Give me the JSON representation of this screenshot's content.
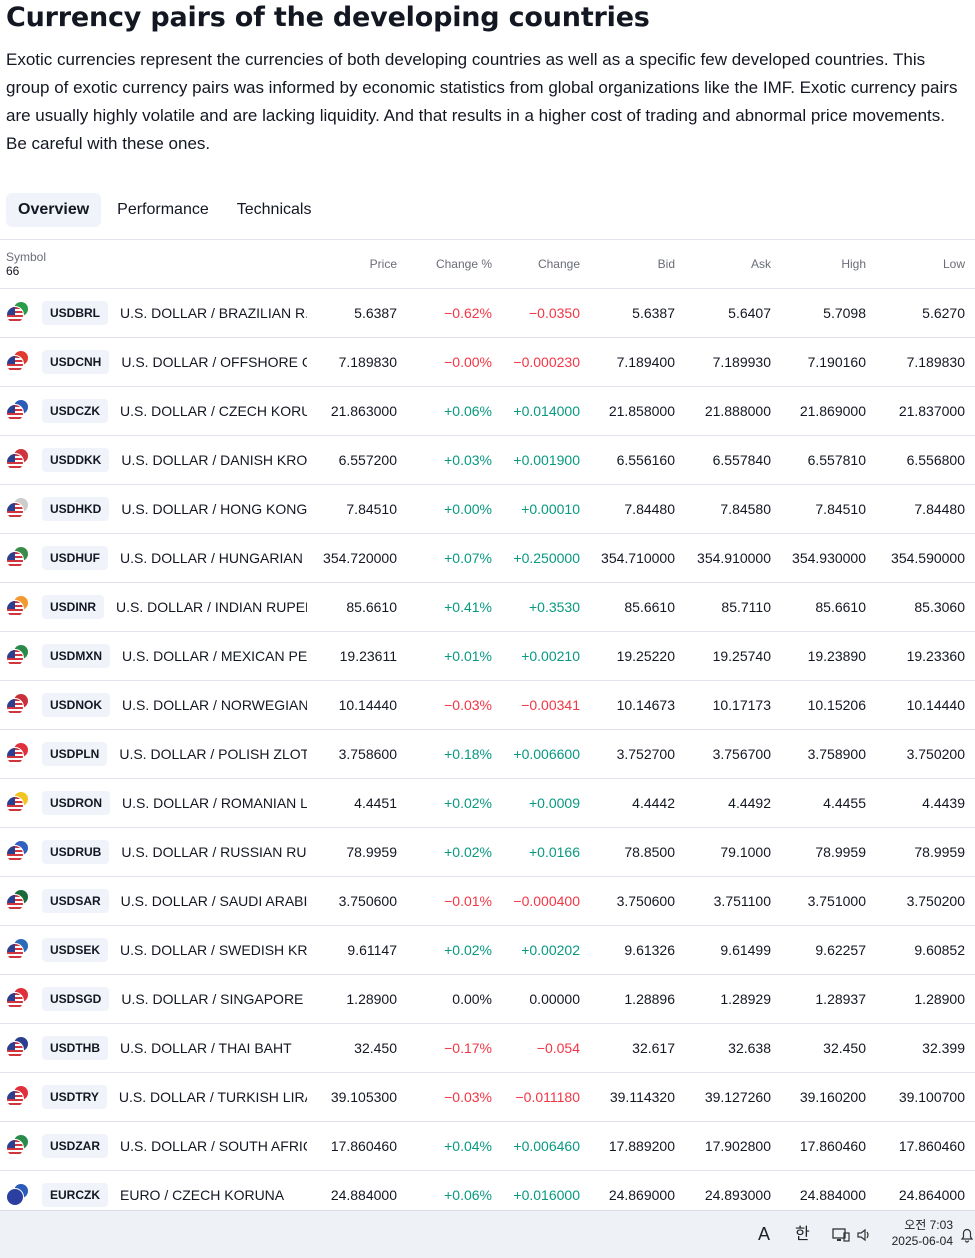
{
  "title": "Currency pairs of the developing countries",
  "description": "Exotic currencies represent the currencies of both developing countries as well as a specific few developed countries. This group of exotic currency pairs was informed by economic statistics from global organizations like the IMF. Exotic currency pairs are usually highly volatile and are lacking liquidity. And that results in a higher cost of trading and abnormal price movements. Be careful with these ones.",
  "tabs": [
    "Overview",
    "Performance",
    "Technicals"
  ],
  "table": {
    "symbol_header": "Symbol",
    "symbol_count": "66",
    "columns": [
      "Price",
      "Change %",
      "Change",
      "Bid",
      "Ask",
      "High",
      "Low"
    ],
    "rows": [
      {
        "ticker": "USDBRL",
        "name": "U.S. DOLLAR / BRAZILIAN R...",
        "price": "5.6387",
        "chg_pct": "−0.62%",
        "chg": "−0.0350",
        "bid": "5.6387",
        "ask": "5.6407",
        "high": "5.7098",
        "low": "5.6270",
        "dir": "neg",
        "flag2": "#2a9d4a"
      },
      {
        "ticker": "USDCNH",
        "name": "U.S. DOLLAR / OFFSHORE C...",
        "price": "7.189830",
        "chg_pct": "−0.00%",
        "chg": "−0.000230",
        "bid": "7.189400",
        "ask": "7.189930",
        "high": "7.190160",
        "low": "7.189830",
        "dir": "neg",
        "flag2": "#e03a2f"
      },
      {
        "ticker": "USDCZK",
        "name": "U.S. DOLLAR / CZECH KORU...",
        "price": "21.863000",
        "chg_pct": "+0.06%",
        "chg": "+0.014000",
        "bid": "21.858000",
        "ask": "21.888000",
        "high": "21.869000",
        "low": "21.837000",
        "dir": "pos",
        "flag2": "#2a5bb8"
      },
      {
        "ticker": "USDDKK",
        "name": "U.S. DOLLAR / DANISH KRONE",
        "price": "6.557200",
        "chg_pct": "+0.03%",
        "chg": "+0.001900",
        "bid": "6.556160",
        "ask": "6.557840",
        "high": "6.557810",
        "low": "6.556800",
        "dir": "pos",
        "flag2": "#d0343c"
      },
      {
        "ticker": "USDHKD",
        "name": "U.S. DOLLAR / HONG KONG ...",
        "price": "7.84510",
        "chg_pct": "+0.00%",
        "chg": "+0.00010",
        "bid": "7.84480",
        "ask": "7.84580",
        "high": "7.84510",
        "low": "7.84480",
        "dir": "pos",
        "flag2": "#cccccc"
      },
      {
        "ticker": "USDHUF",
        "name": "U.S. DOLLAR / HUNGARIAN ...",
        "price": "354.720000",
        "chg_pct": "+0.07%",
        "chg": "+0.250000",
        "bid": "354.710000",
        "ask": "354.910000",
        "high": "354.930000",
        "low": "354.590000",
        "dir": "pos",
        "flag2": "#3a8a4a"
      },
      {
        "ticker": "USDINR",
        "name": "U.S. DOLLAR / INDIAN RUPEE",
        "price": "85.6610",
        "chg_pct": "+0.41%",
        "chg": "+0.3530",
        "bid": "85.6610",
        "ask": "85.7110",
        "high": "85.6610",
        "low": "85.3060",
        "dir": "pos",
        "flag2": "#f29a30"
      },
      {
        "ticker": "USDMXN",
        "name": "U.S. DOLLAR / MEXICAN PESO",
        "price": "19.23611",
        "chg_pct": "+0.01%",
        "chg": "+0.00210",
        "bid": "19.25220",
        "ask": "19.25740",
        "high": "19.23890",
        "low": "19.23360",
        "dir": "pos",
        "flag2": "#2a8a4a"
      },
      {
        "ticker": "USDNOK",
        "name": "U.S. DOLLAR / NORWEGIAN ...",
        "price": "10.14440",
        "chg_pct": "−0.03%",
        "chg": "−0.00341",
        "bid": "10.14673",
        "ask": "10.17173",
        "high": "10.15206",
        "low": "10.14440",
        "dir": "neg",
        "flag2": "#c8303a"
      },
      {
        "ticker": "USDPLN",
        "name": "U.S. DOLLAR / POLISH ZLOTY",
        "price": "3.758600",
        "chg_pct": "+0.18%",
        "chg": "+0.006600",
        "bid": "3.752700",
        "ask": "3.756700",
        "high": "3.758900",
        "low": "3.750200",
        "dir": "pos",
        "flag2": "#e0303c"
      },
      {
        "ticker": "USDRON",
        "name": "U.S. DOLLAR / ROMANIAN L...",
        "price": "4.4451",
        "chg_pct": "+0.02%",
        "chg": "+0.0009",
        "bid": "4.4442",
        "ask": "4.4492",
        "high": "4.4455",
        "low": "4.4439",
        "dir": "pos",
        "flag2": "#f2c520"
      },
      {
        "ticker": "USDRUB",
        "name": "U.S. DOLLAR / RUSSIAN RUB...",
        "price": "78.9959",
        "chg_pct": "+0.02%",
        "chg": "+0.0166",
        "bid": "78.8500",
        "ask": "79.1000",
        "high": "78.9959",
        "low": "78.9959",
        "dir": "pos",
        "flag2": "#3060c0"
      },
      {
        "ticker": "USDSAR",
        "name": "U.S. DOLLAR / SAUDI ARABI...",
        "price": "3.750600",
        "chg_pct": "−0.01%",
        "chg": "−0.000400",
        "bid": "3.750600",
        "ask": "3.751100",
        "high": "3.751000",
        "low": "3.750200",
        "dir": "neg",
        "flag2": "#1a6a3a"
      },
      {
        "ticker": "USDSEK",
        "name": "U.S. DOLLAR / SWEDISH KRO...",
        "price": "9.61147",
        "chg_pct": "+0.02%",
        "chg": "+0.00202",
        "bid": "9.61326",
        "ask": "9.61499",
        "high": "9.62257",
        "low": "9.60852",
        "dir": "pos",
        "flag2": "#2a6ab8"
      },
      {
        "ticker": "USDSGD",
        "name": "U.S. DOLLAR / SINGAPORE D...",
        "price": "1.28900",
        "chg_pct": "0.00%",
        "chg": "0.00000",
        "bid": "1.28896",
        "ask": "1.28929",
        "high": "1.28937",
        "low": "1.28900",
        "dir": "neu",
        "flag2": "#e0303c"
      },
      {
        "ticker": "USDTHB",
        "name": "U.S. DOLLAR / THAI BAHT",
        "price": "32.450",
        "chg_pct": "−0.17%",
        "chg": "−0.054",
        "bid": "32.617",
        "ask": "32.638",
        "high": "32.450",
        "low": "32.399",
        "dir": "neg",
        "flag2": "#2a3f8f"
      },
      {
        "ticker": "USDTRY",
        "name": "U.S. DOLLAR / TURKISH LIRA",
        "price": "39.105300",
        "chg_pct": "−0.03%",
        "chg": "−0.011180",
        "bid": "39.114320",
        "ask": "39.127260",
        "high": "39.160200",
        "low": "39.100700",
        "dir": "neg",
        "flag2": "#e0303c"
      },
      {
        "ticker": "USDZAR",
        "name": "U.S. DOLLAR / SOUTH AFRIC...",
        "price": "17.860460",
        "chg_pct": "+0.04%",
        "chg": "+0.006460",
        "bid": "17.889200",
        "ask": "17.902800",
        "high": "17.860460",
        "low": "17.860460",
        "dir": "pos",
        "flag2": "#2a8a4a"
      },
      {
        "ticker": "EURCZK",
        "name": "EURO / CZECH KORUNA",
        "price": "24.884000",
        "chg_pct": "+0.06%",
        "chg": "+0.016000",
        "bid": "24.869000",
        "ask": "24.893000",
        "high": "24.884000",
        "low": "24.864000",
        "dir": "pos",
        "flag2": "#2a5bb8",
        "euro": true
      }
    ]
  },
  "taskbar": {
    "ime_a": "A",
    "ime_han": "한",
    "time": "오전 7:03",
    "date": "2025-06-04"
  },
  "colors": {
    "positive": "#089981",
    "negative": "#f23645"
  }
}
